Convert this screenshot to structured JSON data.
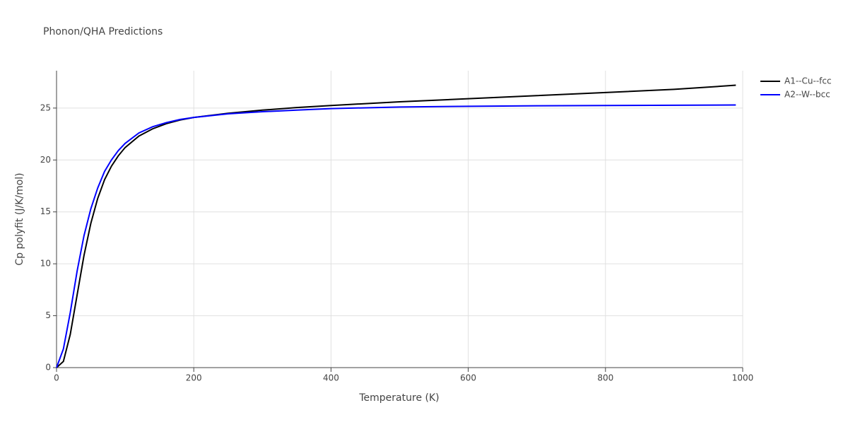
{
  "chart_data": {
    "type": "line",
    "title": "Phonon/QHA Predictions",
    "x_label": "Temperature (K)",
    "y_label": "Cp polyfit (J/K/mol)",
    "x": [
      0,
      10,
      20,
      30,
      40,
      50,
      60,
      70,
      80,
      90,
      100,
      120,
      140,
      160,
      180,
      200,
      250,
      300,
      350,
      400,
      500,
      600,
      700,
      800,
      900,
      990
    ],
    "series": [
      {
        "name": "A1--Cu--fcc",
        "color": "#000000",
        "values": [
          0,
          0.6,
          3.2,
          7,
          10.8,
          13.9,
          16.3,
          18.1,
          19.4,
          20.4,
          21.2,
          22.3,
          23,
          23.5,
          23.85,
          24.1,
          24.5,
          24.8,
          25.05,
          25.25,
          25.6,
          25.9,
          26.2,
          26.5,
          26.8,
          27.2
        ]
      },
      {
        "name": "A2--W--bcc",
        "color": "#0000ff",
        "values": [
          0,
          1.8,
          5.3,
          9.3,
          12.7,
          15.3,
          17.3,
          18.9,
          20,
          20.9,
          21.6,
          22.6,
          23.2,
          23.6,
          23.9,
          24.1,
          24.45,
          24.65,
          24.8,
          24.95,
          25.1,
          25.17,
          25.22,
          25.25,
          25.27,
          25.3
        ]
      }
    ],
    "xlim": [
      0,
      1000
    ],
    "xticks": [
      0,
      200,
      400,
      600,
      800,
      1000
    ],
    "ylim": [
      0,
      28.6
    ],
    "yticks": [
      0,
      5,
      10,
      15,
      20,
      25
    ],
    "grid": true,
    "legend": "right"
  }
}
